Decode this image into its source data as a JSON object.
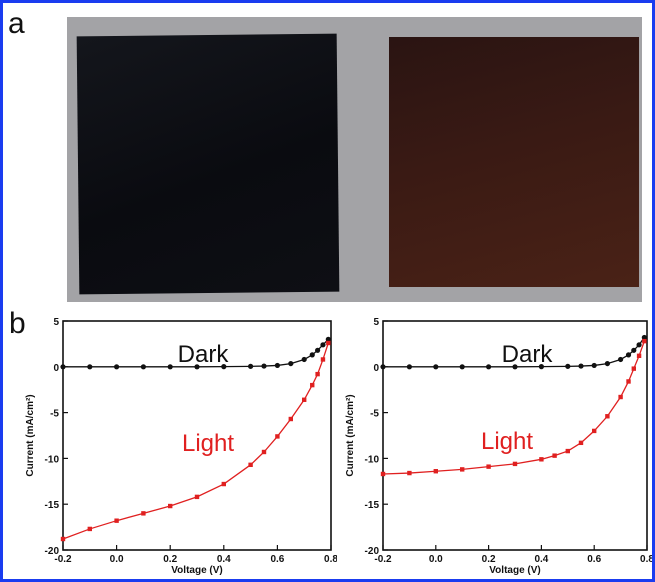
{
  "labels": {
    "panel_a": "a",
    "panel_b": "b"
  },
  "photo": {
    "samples": [
      "black-film",
      "brown-film"
    ]
  },
  "chart_data": [
    {
      "type": "line",
      "xlabel": "Voltage (V)",
      "ylabel": "Current (mA/cm²)",
      "xlim": [
        -0.2,
        0.8
      ],
      "ylim": [
        -20,
        5
      ],
      "xticks": [
        "-0.2",
        "0.0",
        "0.2",
        "0.4",
        "0.6",
        "0.8"
      ],
      "yticks": [
        "5",
        "0",
        "-5",
        "-10",
        "-15",
        "-20"
      ],
      "annotations": {
        "dark": "Dark",
        "light": "Light"
      },
      "series": [
        {
          "name": "Dark",
          "color": "#111111",
          "x": [
            -0.2,
            -0.1,
            0.0,
            0.1,
            0.2,
            0.3,
            0.4,
            0.5,
            0.55,
            0.6,
            0.65,
            0.7,
            0.73,
            0.75,
            0.77,
            0.79
          ],
          "y": [
            0,
            0,
            0,
            0,
            0,
            0,
            0.02,
            0.05,
            0.08,
            0.15,
            0.35,
            0.8,
            1.3,
            1.8,
            2.4,
            3.0
          ]
        },
        {
          "name": "Light",
          "color": "#e02020",
          "x": [
            -0.2,
            -0.1,
            0.0,
            0.1,
            0.2,
            0.3,
            0.4,
            0.5,
            0.55,
            0.6,
            0.65,
            0.7,
            0.73,
            0.75,
            0.77,
            0.79
          ],
          "y": [
            -18.8,
            -17.7,
            -16.8,
            -16.0,
            -15.2,
            -14.2,
            -12.8,
            -10.7,
            -9.3,
            -7.6,
            -5.7,
            -3.6,
            -2.0,
            -0.8,
            0.8,
            2.6
          ]
        }
      ]
    },
    {
      "type": "line",
      "xlabel": "Voltage (V)",
      "ylabel": "Current (mA/cm²)",
      "xlim": [
        -0.2,
        0.8
      ],
      "ylim": [
        -20,
        5
      ],
      "xticks": [
        "-0.2",
        "0.0",
        "0.2",
        "0.4",
        "0.6",
        "0.8"
      ],
      "yticks": [
        "5",
        "0",
        "-5",
        "-10",
        "-15",
        "-20"
      ],
      "annotations": {
        "dark": "Dark",
        "light": "Light"
      },
      "series": [
        {
          "name": "Dark",
          "color": "#111111",
          "x": [
            -0.2,
            -0.1,
            0.0,
            0.1,
            0.2,
            0.3,
            0.4,
            0.5,
            0.55,
            0.6,
            0.65,
            0.7,
            0.73,
            0.75,
            0.77,
            0.79
          ],
          "y": [
            0,
            0,
            0,
            0,
            0,
            0,
            0.02,
            0.05,
            0.08,
            0.15,
            0.35,
            0.8,
            1.3,
            1.8,
            2.4,
            3.2
          ]
        },
        {
          "name": "Light",
          "color": "#e02020",
          "x": [
            -0.2,
            -0.1,
            0.0,
            0.1,
            0.2,
            0.3,
            0.4,
            0.45,
            0.5,
            0.55,
            0.6,
            0.65,
            0.7,
            0.73,
            0.75,
            0.77,
            0.79
          ],
          "y": [
            -11.7,
            -11.6,
            -11.4,
            -11.2,
            -10.9,
            -10.6,
            -10.1,
            -9.7,
            -9.2,
            -8.3,
            -7.0,
            -5.4,
            -3.3,
            -1.6,
            -0.2,
            1.2,
            2.8
          ]
        }
      ]
    }
  ]
}
